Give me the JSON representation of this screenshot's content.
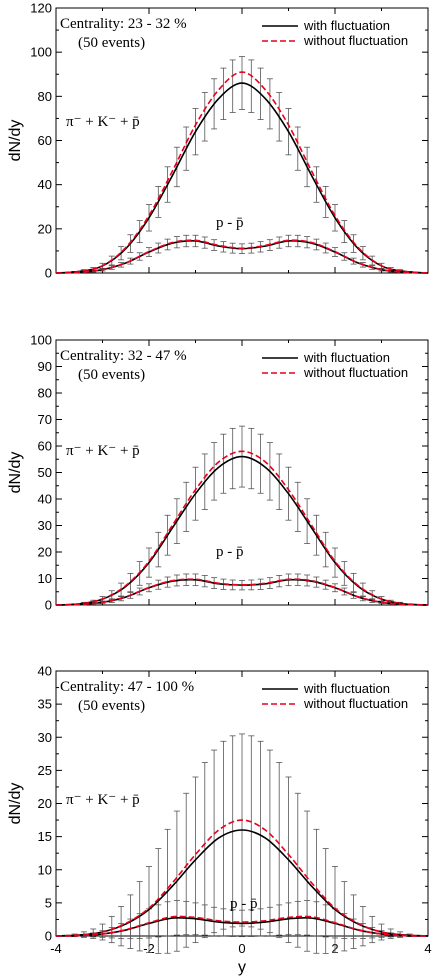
{
  "chart_data": [
    {
      "type": "line",
      "ylabel": "dN/dy",
      "xlabel": "",
      "xlim": [
        -4,
        4
      ],
      "ylim": [
        0,
        120
      ],
      "xticks": [],
      "yticks": [
        0,
        20,
        40,
        60,
        80,
        100,
        120
      ],
      "annotations": [
        "Centrality: 23 - 32 %",
        "(50 events)",
        "π⁻ + K⁻ + p̄",
        "p - p̄"
      ],
      "legend": {
        "placement": "top-right",
        "entries": [
          "with fluctuation",
          "without fluctuation"
        ]
      },
      "series": [
        {
          "name": "with fluctuation",
          "group": "π⁻ + K⁻ + p̄",
          "color": "#000000",
          "style": "solid",
          "x": [
            -4,
            -3.5,
            -3,
            -2.5,
            -2,
            -1.5,
            -1,
            -0.5,
            0,
            0.5,
            1,
            1.5,
            2,
            2.5,
            3,
            3.5,
            4
          ],
          "y": [
            0,
            0.7,
            3.2,
            11,
            25,
            44,
            64,
            79,
            86,
            79,
            64,
            44,
            25,
            11,
            3.2,
            0.7,
            0
          ],
          "err": [
            0,
            0.4,
            1.2,
            3.5,
            6,
            8.5,
            10.5,
            11.5,
            12,
            11.5,
            10.5,
            8.5,
            6,
            3.5,
            1.2,
            0.4,
            0
          ]
        },
        {
          "name": "without fluctuation",
          "group": "π⁻ + K⁻ + p̄",
          "color": "#e8001c",
          "style": "dashed",
          "x": [
            -4,
            -3.5,
            -3,
            -2.5,
            -2,
            -1.5,
            -1,
            -0.5,
            0,
            0.5,
            1,
            1.5,
            2,
            2.5,
            3,
            3.5,
            4
          ],
          "y": [
            0,
            0.7,
            3.3,
            11.5,
            26,
            46,
            67,
            83,
            91,
            83,
            67,
            46,
            26,
            11.5,
            3.3,
            0.7,
            0
          ]
        },
        {
          "name": "with fluctuation",
          "group": "p - p̄",
          "color": "#000000",
          "style": "solid",
          "x": [
            -4,
            -3.5,
            -3,
            -2.5,
            -2,
            -1.5,
            -1,
            -0.5,
            0,
            0.5,
            1,
            1.5,
            2,
            2.5,
            3,
            3.5,
            4
          ],
          "y": [
            0,
            0.3,
            1.5,
            4.5,
            9.5,
            13.5,
            14.5,
            12.2,
            11,
            12.2,
            14.5,
            13.5,
            9.5,
            4.5,
            1.5,
            0.3,
            0
          ],
          "err": [
            0,
            0.2,
            0.6,
            1.2,
            2,
            2.5,
            2.6,
            2.4,
            2.2,
            2.4,
            2.6,
            2.5,
            2,
            1.2,
            0.6,
            0.2,
            0
          ]
        },
        {
          "name": "without fluctuation",
          "group": "p - p̄",
          "color": "#e8001c",
          "style": "dashed",
          "x": [
            -4,
            -3.5,
            -3,
            -2.5,
            -2,
            -1.5,
            -1,
            -0.5,
            0,
            0.5,
            1,
            1.5,
            2,
            2.5,
            3,
            3.5,
            4
          ],
          "y": [
            0,
            0.3,
            1.5,
            4.6,
            9.7,
            13.8,
            14.8,
            12.5,
            11.2,
            12.5,
            14.8,
            13.8,
            9.7,
            4.6,
            1.5,
            0.3,
            0
          ]
        }
      ]
    },
    {
      "type": "line",
      "ylabel": "dN/dy",
      "xlabel": "",
      "xlim": [
        -4,
        4
      ],
      "ylim": [
        0,
        100
      ],
      "xticks": [],
      "yticks": [
        0,
        10,
        20,
        30,
        40,
        50,
        60,
        70,
        80,
        90,
        100
      ],
      "annotations": [
        "Centrality: 32 - 47 %",
        "(50 events)",
        "π⁻ + K⁻ + p̄",
        "p - p̄"
      ],
      "legend": {
        "placement": "top-right",
        "entries": [
          "with fluctuation",
          "without fluctuation"
        ]
      },
      "series": [
        {
          "name": "with fluctuation",
          "group": "π⁻ + K⁻ + p̄",
          "color": "#000000",
          "style": "solid",
          "x": [
            -4,
            -3.5,
            -3,
            -2.5,
            -2,
            -1.5,
            -1,
            -0.5,
            0,
            0.5,
            1,
            1.5,
            2,
            2.5,
            3,
            3.5,
            4
          ],
          "y": [
            0,
            0.4,
            2.2,
            7,
            16,
            29,
            42,
            52,
            56,
            52,
            42,
            29,
            16,
            7,
            2.2,
            0.4,
            0
          ],
          "err": [
            0,
            0.3,
            1,
            3,
            5.5,
            8,
            10,
            11,
            11.5,
            11,
            10,
            8,
            5.5,
            3,
            1,
            0.3,
            0
          ]
        },
        {
          "name": "without fluctuation",
          "group": "π⁻ + K⁻ + p̄",
          "color": "#e8001c",
          "style": "dashed",
          "x": [
            -4,
            -3.5,
            -3,
            -2.5,
            -2,
            -1.5,
            -1,
            -0.5,
            0,
            0.5,
            1,
            1.5,
            2,
            2.5,
            3,
            3.5,
            4
          ],
          "y": [
            0,
            0.4,
            2.3,
            7.3,
            16.5,
            30,
            43.5,
            54,
            58,
            54,
            43.5,
            30,
            16.5,
            7.3,
            2.3,
            0.4,
            0
          ]
        },
        {
          "name": "with fluctuation",
          "group": "p - p̄",
          "color": "#000000",
          "style": "solid",
          "x": [
            -4,
            -3.5,
            -3,
            -2.5,
            -2,
            -1.5,
            -1,
            -0.5,
            0,
            0.5,
            1,
            1.5,
            2,
            2.5,
            3,
            3.5,
            4
          ],
          "y": [
            0,
            0.2,
            1,
            3,
            6.5,
            9,
            9.5,
            8,
            7.5,
            8,
            9.5,
            9,
            6.5,
            3,
            1,
            0.2,
            0
          ],
          "err": [
            0,
            0.2,
            0.5,
            1,
            1.5,
            2,
            2.2,
            2,
            1.8,
            2,
            2.2,
            2,
            1.5,
            1,
            0.5,
            0.2,
            0
          ]
        },
        {
          "name": "without fluctuation",
          "group": "p - p̄",
          "color": "#e8001c",
          "style": "dashed",
          "x": [
            -4,
            -3.5,
            -3,
            -2.5,
            -2,
            -1.5,
            -1,
            -0.5,
            0,
            0.5,
            1,
            1.5,
            2,
            2.5,
            3,
            3.5,
            4
          ],
          "y": [
            0,
            0.2,
            1,
            3.1,
            6.6,
            9.2,
            9.7,
            8.2,
            7.6,
            8.2,
            9.7,
            9.2,
            6.6,
            3.1,
            1,
            0.2,
            0
          ]
        }
      ]
    },
    {
      "type": "line",
      "ylabel": "dN/dy",
      "xlabel": "y",
      "xlim": [
        -4,
        4
      ],
      "ylim": [
        0,
        40
      ],
      "xticks": [
        -4,
        -2,
        0,
        2,
        4
      ],
      "yticks": [
        0,
        5,
        10,
        15,
        20,
        25,
        30,
        35,
        40
      ],
      "annotations": [
        "Centrality: 47 - 100 %",
        "(50 events)",
        "π⁻ + K⁻ + p̄",
        "p - p̄"
      ],
      "legend": {
        "placement": "top-right",
        "entries": [
          "with fluctuation",
          "without fluctuation"
        ]
      },
      "series": [
        {
          "name": "with fluctuation",
          "group": "π⁻ + K⁻ + p̄",
          "color": "#000000",
          "style": "solid",
          "x": [
            -4,
            -3.5,
            -3,
            -2.5,
            -2,
            -1.5,
            -1,
            -0.5,
            0,
            0.5,
            1,
            1.5,
            2,
            2.5,
            3,
            3.5,
            4
          ],
          "y": [
            0,
            0.15,
            0.6,
            1.8,
            4,
            7.5,
            11.5,
            14.8,
            16,
            14.8,
            11.5,
            7.5,
            4,
            1.8,
            0.6,
            0.15,
            0
          ],
          "err": [
            0,
            0.3,
            1.2,
            3.5,
            6.5,
            10,
            12.5,
            14,
            14.5,
            14,
            12.5,
            10,
            6.5,
            3.5,
            1.2,
            0.3,
            0
          ]
        },
        {
          "name": "without fluctuation",
          "group": "π⁻ + K⁻ + p̄",
          "color": "#e8001c",
          "style": "dashed",
          "x": [
            -4,
            -3.5,
            -3,
            -2.5,
            -2,
            -1.5,
            -1,
            -0.5,
            0,
            0.5,
            1,
            1.5,
            2,
            2.5,
            3,
            3.5,
            4
          ],
          "y": [
            0,
            0.15,
            0.6,
            1.9,
            4.2,
            8,
            12.3,
            16,
            17.5,
            16,
            12.3,
            8,
            4.2,
            1.9,
            0.6,
            0.15,
            0
          ]
        },
        {
          "name": "with fluctuation",
          "group": "p - p̄",
          "color": "#000000",
          "style": "solid",
          "x": [
            -4,
            -3.5,
            -3,
            -2.5,
            -2,
            -1.5,
            -1,
            -0.5,
            0,
            0.5,
            1,
            1.5,
            2,
            2.5,
            3,
            3.5,
            4
          ],
          "y": [
            0,
            0.05,
            0.3,
            0.9,
            1.9,
            2.7,
            2.6,
            2.1,
            1.9,
            2.1,
            2.6,
            2.7,
            1.9,
            0.9,
            0.3,
            0.05,
            0
          ],
          "err": [
            0,
            0.1,
            0.5,
            1.3,
            2.2,
            2.6,
            2.4,
            2.1,
            2,
            2.1,
            2.4,
            2.6,
            2.2,
            1.3,
            0.5,
            0.1,
            0
          ]
        },
        {
          "name": "without fluctuation",
          "group": "p - p̄",
          "color": "#e8001c",
          "style": "dashed",
          "x": [
            -4,
            -3.5,
            -3,
            -2.5,
            -2,
            -1.5,
            -1,
            -0.5,
            0,
            0.5,
            1,
            1.5,
            2,
            2.5,
            3,
            3.5,
            4
          ],
          "y": [
            0,
            0.05,
            0.3,
            0.95,
            2,
            2.9,
            2.8,
            2.3,
            2.1,
            2.3,
            2.8,
            2.9,
            2,
            0.95,
            0.3,
            0.05,
            0
          ]
        }
      ]
    }
  ]
}
